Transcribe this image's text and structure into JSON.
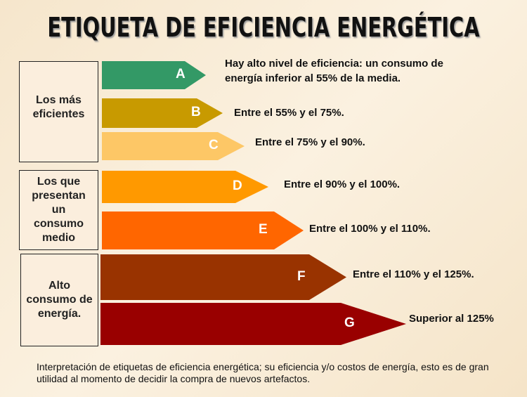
{
  "title": "ETIQUETA DE EFICIENCIA ENERGÉTICA",
  "groups": [
    "Los más eficientes",
    "Los que presentan un consumo medio",
    "Alto consumo de energía."
  ],
  "classes": [
    {
      "letter": "A",
      "color": "#339966",
      "description": "Hay alto nivel de eficiencia: un consumo de energía inferior al 55% de la media."
    },
    {
      "letter": "B",
      "color": "#c89a00",
      "description": "Entre el 55% y el 75%."
    },
    {
      "letter": "C",
      "color": "#fdc766",
      "description": "Entre el 75% y el 90%."
    },
    {
      "letter": "D",
      "color": "#ff9900",
      "description": "Entre el 90% y el 100%."
    },
    {
      "letter": "E",
      "color": "#ff6600",
      "description": "Entre el 100% y el 110%."
    },
    {
      "letter": "F",
      "color": "#993300",
      "description": "Entre el 110% y el 125%."
    },
    {
      "letter": "G",
      "color": "#990000",
      "description": "Superior al 125%"
    }
  ],
  "caption": "Interpretación de etiquetas de eficiencia energética; su eficiencia y/o costos de energía, esto es de gran utilidad al momento de decidir la compra de nuevos artefactos."
}
